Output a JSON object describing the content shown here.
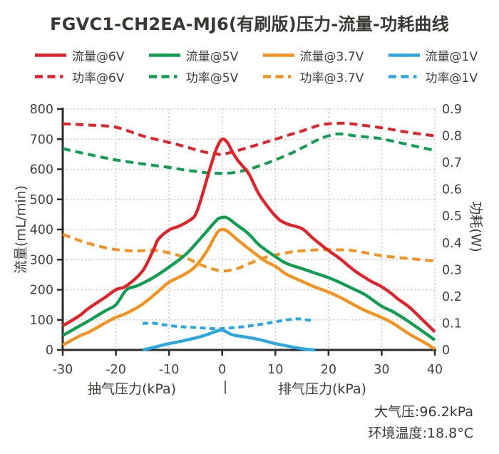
{
  "title": "FGVC1-CH2EA-MJ6(有刷版)压力-流量-功耗曲线",
  "legend": {
    "items": [
      {
        "label": "流量@6V"
      },
      {
        "label": "流量@5V"
      },
      {
        "label": "流量@3.7V"
      },
      {
        "label": "流量@1V"
      },
      {
        "label": "功率@6V"
      },
      {
        "label": "功率@5V"
      },
      {
        "label": "功率@3.7V"
      },
      {
        "label": "功率@1V"
      }
    ]
  },
  "footer": {
    "atmospheric_pressure": "大气压:96.2kPa",
    "ambient_temperature": "环境温度:18.8°C"
  },
  "colors": {
    "red": "#e22128",
    "green": "#0f9e4f",
    "orange": "#f5921e",
    "blue": "#2aa7e0",
    "axis": "#2d2a27",
    "grid": "#c3c3c3",
    "tick_text": "#45413e"
  },
  "chart_data": {
    "type": "line",
    "title": "FGVC1-CH2EA-MJ6(有刷版)压力-流量-功耗曲线",
    "grid": true,
    "legend_position": "top",
    "x_axis": {
      "caption_left": "抽气压力(kPa)",
      "caption_separator": "|",
      "caption_right": "排气压力(kPa)",
      "range": [
        -30,
        40
      ],
      "ticks": [
        -30,
        -20,
        -10,
        0,
        10,
        20,
        30,
        40
      ],
      "gridlines": [
        -20,
        -10,
        0,
        10,
        20,
        30,
        40
      ]
    },
    "y_left": {
      "label": "流量(mL/min)",
      "range": [
        0,
        800
      ],
      "ticks": [
        800,
        700,
        600,
        500,
        400,
        300,
        200,
        100,
        0
      ],
      "gridlines": [
        800,
        700,
        600,
        500,
        400,
        300,
        200,
        100
      ]
    },
    "y_right": {
      "label": "功耗(W)",
      "range": [
        0,
        0.9
      ],
      "ticks": [
        "0.9",
        "0.8",
        "0.7",
        "0.6",
        "0.5",
        "0.4",
        "0.3",
        "0.2",
        "0.1",
        "0"
      ]
    },
    "series": [
      {
        "id": "flow-6v",
        "name": "流量@6V",
        "axis": "left",
        "unit": "mL/min",
        "line": "solid",
        "color": "#e22128",
        "points": [
          [
            -30,
            80
          ],
          [
            -27,
            112
          ],
          [
            -25,
            140
          ],
          [
            -22,
            175
          ],
          [
            -20,
            200
          ],
          [
            -18,
            213
          ],
          [
            -15,
            262
          ],
          [
            -13,
            330
          ],
          [
            -12,
            368
          ],
          [
            -10,
            398
          ],
          [
            -8,
            412
          ],
          [
            -6,
            432
          ],
          [
            -5,
            450
          ],
          [
            -4,
            500
          ],
          [
            -3,
            560
          ],
          [
            -2,
            620
          ],
          [
            -1,
            672
          ],
          [
            0,
            700
          ],
          [
            1,
            688
          ],
          [
            2,
            655
          ],
          [
            3,
            628
          ],
          [
            5,
            585
          ],
          [
            7,
            515
          ],
          [
            10,
            445
          ],
          [
            12,
            420
          ],
          [
            15,
            403
          ],
          [
            17,
            372
          ],
          [
            20,
            330
          ],
          [
            22,
            305
          ],
          [
            25,
            262
          ],
          [
            28,
            228
          ],
          [
            30,
            210
          ],
          [
            32,
            185
          ],
          [
            33,
            170
          ],
          [
            35,
            145
          ],
          [
            37,
            112
          ],
          [
            40,
            60
          ]
        ]
      },
      {
        "id": "flow-5v",
        "name": "流量@5V",
        "axis": "left",
        "unit": "mL/min",
        "line": "solid",
        "color": "#0f9e4f",
        "points": [
          [
            -30,
            48
          ],
          [
            -27,
            78
          ],
          [
            -25,
            98
          ],
          [
            -22,
            130
          ],
          [
            -20,
            150
          ],
          [
            -18,
            200
          ],
          [
            -16,
            213
          ],
          [
            -13,
            240
          ],
          [
            -10,
            275
          ],
          [
            -7,
            315
          ],
          [
            -5,
            352
          ],
          [
            -3,
            392
          ],
          [
            -1,
            432
          ],
          [
            0,
            440
          ],
          [
            1,
            438
          ],
          [
            3,
            412
          ],
          [
            5,
            385
          ],
          [
            7,
            348
          ],
          [
            10,
            310
          ],
          [
            12,
            288
          ],
          [
            15,
            270
          ],
          [
            17,
            258
          ],
          [
            20,
            240
          ],
          [
            22,
            225
          ],
          [
            25,
            200
          ],
          [
            27,
            182
          ],
          [
            30,
            145
          ],
          [
            32,
            128
          ],
          [
            35,
            95
          ],
          [
            38,
            58
          ],
          [
            40,
            33
          ]
        ]
      },
      {
        "id": "flow-3-7v",
        "name": "流量@3.7V",
        "axis": "left",
        "unit": "mL/min",
        "line": "solid",
        "color": "#f5921e",
        "points": [
          [
            -30,
            16
          ],
          [
            -27,
            45
          ],
          [
            -25,
            60
          ],
          [
            -22,
            90
          ],
          [
            -20,
            108
          ],
          [
            -18,
            122
          ],
          [
            -15,
            152
          ],
          [
            -12,
            195
          ],
          [
            -10,
            225
          ],
          [
            -7,
            252
          ],
          [
            -5,
            278
          ],
          [
            -3,
            325
          ],
          [
            -1,
            388
          ],
          [
            0,
            400
          ],
          [
            1,
            394
          ],
          [
            3,
            364
          ],
          [
            5,
            336
          ],
          [
            8,
            296
          ],
          [
            10,
            278
          ],
          [
            12,
            252
          ],
          [
            15,
            228
          ],
          [
            17,
            212
          ],
          [
            20,
            192
          ],
          [
            22,
            176
          ],
          [
            25,
            148
          ],
          [
            27,
            130
          ],
          [
            30,
            108
          ],
          [
            32,
            90
          ],
          [
            35,
            55
          ],
          [
            38,
            25
          ],
          [
            40,
            3
          ]
        ]
      },
      {
        "id": "flow-1v",
        "name": "流量@1V",
        "axis": "left",
        "unit": "mL/min",
        "line": "solid",
        "color": "#2aa7e0",
        "points": [
          [
            -15,
            0
          ],
          [
            -13,
            8
          ],
          [
            -11,
            17
          ],
          [
            -10,
            21
          ],
          [
            -8,
            28
          ],
          [
            -5,
            40
          ],
          [
            -3,
            50
          ],
          [
            -1,
            63
          ],
          [
            0,
            66
          ],
          [
            1,
            58
          ],
          [
            2,
            50
          ],
          [
            4,
            44
          ],
          [
            6,
            38
          ],
          [
            8,
            30
          ],
          [
            10,
            21
          ],
          [
            12,
            14
          ],
          [
            14,
            7
          ],
          [
            16,
            2
          ],
          [
            17.5,
            0
          ]
        ]
      },
      {
        "id": "power-6v",
        "name": "功率@6V",
        "axis": "right",
        "unit": "W",
        "line": "dashed",
        "color": "#e22128",
        "points": [
          [
            -30,
            0.845
          ],
          [
            -25,
            0.84
          ],
          [
            -20,
            0.832
          ],
          [
            -15,
            0.8
          ],
          [
            -10,
            0.775
          ],
          [
            -7,
            0.76
          ],
          [
            -5,
            0.748
          ],
          [
            -3,
            0.738
          ],
          [
            -1,
            0.732
          ],
          [
            0,
            0.731
          ],
          [
            2,
            0.74
          ],
          [
            5,
            0.757
          ],
          [
            8,
            0.775
          ],
          [
            10,
            0.787
          ],
          [
            13,
            0.806
          ],
          [
            15,
            0.818
          ],
          [
            18,
            0.838
          ],
          [
            20,
            0.845
          ],
          [
            23,
            0.847
          ],
          [
            25,
            0.843
          ],
          [
            30,
            0.83
          ],
          [
            35,
            0.813
          ],
          [
            40,
            0.8
          ]
        ]
      },
      {
        "id": "power-5v",
        "name": "功率@5V",
        "axis": "right",
        "unit": "W",
        "line": "dashed",
        "color": "#0f9e4f",
        "points": [
          [
            -30,
            0.752
          ],
          [
            -25,
            0.73
          ],
          [
            -20,
            0.71
          ],
          [
            -15,
            0.695
          ],
          [
            -10,
            0.682
          ],
          [
            -7,
            0.672
          ],
          [
            -5,
            0.667
          ],
          [
            -3,
            0.662
          ],
          [
            -1,
            0.66
          ],
          [
            0,
            0.66
          ],
          [
            2,
            0.662
          ],
          [
            5,
            0.675
          ],
          [
            8,
            0.695
          ],
          [
            10,
            0.71
          ],
          [
            13,
            0.735
          ],
          [
            15,
            0.755
          ],
          [
            18,
            0.785
          ],
          [
            20,
            0.8
          ],
          [
            22,
            0.807
          ],
          [
            25,
            0.8
          ],
          [
            28,
            0.794
          ],
          [
            30,
            0.789
          ],
          [
            35,
            0.767
          ],
          [
            40,
            0.745
          ]
        ]
      },
      {
        "id": "power-3-7v",
        "name": "功率@3.7V",
        "axis": "right",
        "unit": "W",
        "line": "dashed",
        "color": "#f5921e",
        "points": [
          [
            -30,
            0.432
          ],
          [
            -27,
            0.41
          ],
          [
            -25,
            0.397
          ],
          [
            -22,
            0.382
          ],
          [
            -20,
            0.375
          ],
          [
            -17,
            0.37
          ],
          [
            -15,
            0.371
          ],
          [
            -13,
            0.373
          ],
          [
            -10,
            0.363
          ],
          [
            -7,
            0.345
          ],
          [
            -5,
            0.327
          ],
          [
            -3,
            0.31
          ],
          [
            -1,
            0.298
          ],
          [
            0,
            0.295
          ],
          [
            1,
            0.296
          ],
          [
            3,
            0.305
          ],
          [
            5,
            0.322
          ],
          [
            8,
            0.345
          ],
          [
            10,
            0.355
          ],
          [
            13,
            0.366
          ],
          [
            15,
            0.37
          ],
          [
            18,
            0.374
          ],
          [
            20,
            0.375
          ],
          [
            22,
            0.374
          ],
          [
            25,
            0.37
          ],
          [
            30,
            0.352
          ],
          [
            35,
            0.342
          ],
          [
            40,
            0.332
          ]
        ]
      },
      {
        "id": "power-1v",
        "name": "功率@1V",
        "axis": "right",
        "unit": "W",
        "line": "dashed-short",
        "color": "#2aa7e0",
        "points": [
          [
            -15,
            0.099
          ],
          [
            -13,
            0.1
          ],
          [
            -11,
            0.094
          ],
          [
            -9,
            0.089
          ],
          [
            -7,
            0.086
          ],
          [
            -5,
            0.084
          ],
          [
            -3,
            0.081
          ],
          [
            -1,
            0.079
          ],
          [
            0,
            0.08
          ],
          [
            2,
            0.083
          ],
          [
            4,
            0.087
          ],
          [
            6,
            0.092
          ],
          [
            8,
            0.098
          ],
          [
            10,
            0.105
          ],
          [
            12,
            0.112
          ],
          [
            14,
            0.116
          ],
          [
            15,
            0.115
          ],
          [
            16,
            0.112
          ],
          [
            17,
            0.11
          ]
        ]
      }
    ]
  }
}
